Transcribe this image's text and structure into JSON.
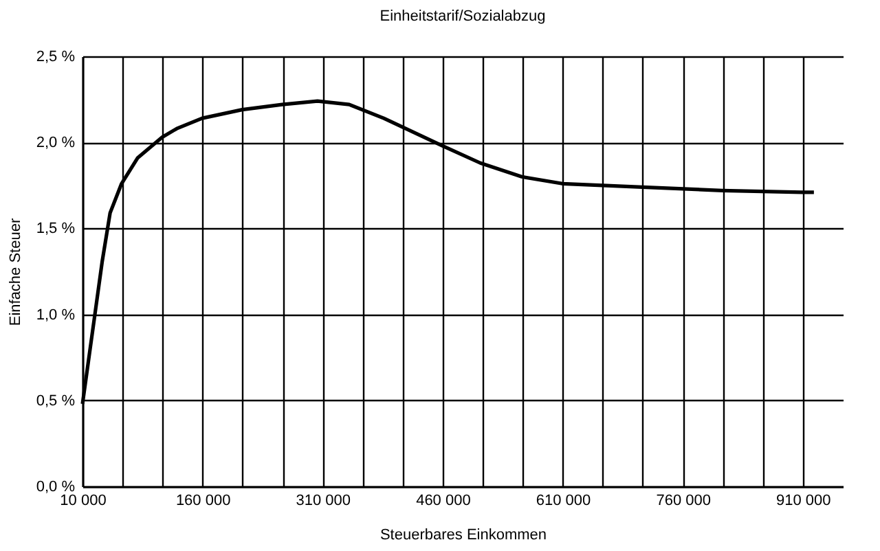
{
  "chart_data": {
    "type": "line",
    "title": "Einheitstarif/Sozialabzug",
    "xlabel": "Steuerbares Einkommen",
    "ylabel": "Einfache Steuer",
    "x": [
      10000,
      24300,
      34700,
      44500,
      58800,
      79000,
      109500,
      127800,
      159500,
      209500,
      259500,
      303600,
      343300,
      386400,
      459500,
      507000,
      558800,
      609500,
      709500,
      809500,
      908800,
      923800
    ],
    "series": [
      {
        "color": "#000000",
        "values": [
          0.48,
          0.96,
          1.31,
          1.59,
          1.76,
          1.91,
          2.03,
          2.08,
          2.14,
          2.19,
          2.22,
          2.24,
          2.22,
          2.14,
          1.98,
          1.88,
          1.8,
          1.76,
          1.74,
          1.72,
          1.71,
          1.71
        ]
      }
    ],
    "xlim": [
      10000,
      960000
    ],
    "xticks": [
      {
        "value": 10000,
        "label": "10 000"
      },
      {
        "value": 60000,
        "label": null
      },
      {
        "value": 110000,
        "label": null
      },
      {
        "value": 160000,
        "label": "160 000"
      },
      {
        "value": 210000,
        "label": null
      },
      {
        "value": 260000,
        "label": null
      },
      {
        "value": 310000,
        "label": "310 000"
      },
      {
        "value": 360000,
        "label": null
      },
      {
        "value": 410000,
        "label": null
      },
      {
        "value": 460000,
        "label": "460 000"
      },
      {
        "value": 510000,
        "label": null
      },
      {
        "value": 560000,
        "label": null
      },
      {
        "value": 610000,
        "label": "610 000"
      },
      {
        "value": 660000,
        "label": null
      },
      {
        "value": 710000,
        "label": null
      },
      {
        "value": 760000,
        "label": "760 000"
      },
      {
        "value": 810000,
        "label": null
      },
      {
        "value": 860000,
        "label": null
      },
      {
        "value": 910000,
        "label": "910 000"
      }
    ],
    "ylim": [
      0,
      2.5
    ],
    "yticks": [
      {
        "value": 0,
        "label": "0,0 %"
      },
      {
        "value": 0.5,
        "label": "0,5 %"
      },
      {
        "value": 1.0,
        "label": "1,0 %"
      },
      {
        "value": 1.5,
        "label": "1,5 %"
      },
      {
        "value": 2.0,
        "label": "2,0 %"
      },
      {
        "value": 2.5,
        "label": "2,5 %"
      }
    ],
    "grid": true,
    "marker": "none",
    "line_style": "solid"
  }
}
